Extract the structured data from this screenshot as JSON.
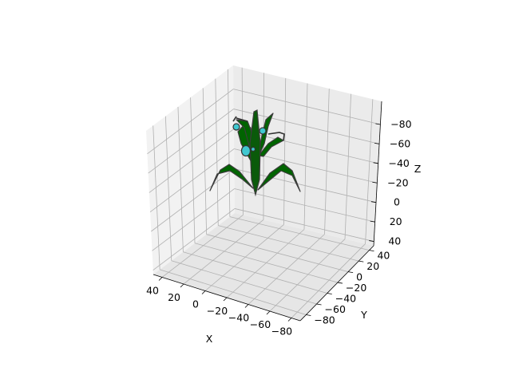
{
  "chart_data": {
    "type": "surface3d",
    "title": "",
    "xlabel": "X",
    "ylabel": "Y",
    "zlabel": "Z",
    "x_ticks": [
      "40",
      "20",
      "0",
      "−20",
      "−40",
      "−60",
      "−80"
    ],
    "y_ticks": [
      "−80",
      "−60",
      "−40",
      "−20",
      "0",
      "20",
      "40"
    ],
    "z_ticks": [
      "−80",
      "−60",
      "−40",
      "−20",
      "0",
      "20",
      "40"
    ],
    "xlim": [
      -95,
      45
    ],
    "ylim": [
      -95,
      45
    ],
    "zlim": [
      -100,
      45
    ],
    "z_inverted": true,
    "grid": true,
    "colors": {
      "leaf": "#006400",
      "edge": "#3c3c3c",
      "fruit": "#40c8d0",
      "pane": "#f2f2f2",
      "grid": "#b0b0b0"
    },
    "objects": [
      {
        "name": "stem",
        "kind": "stem"
      },
      {
        "name": "leaf",
        "kind": "leaf"
      },
      {
        "name": "leaf",
        "kind": "leaf"
      },
      {
        "name": "leaf",
        "kind": "leaf"
      },
      {
        "name": "leaf",
        "kind": "leaf"
      },
      {
        "name": "leaf",
        "kind": "leaf"
      },
      {
        "name": "leaf",
        "kind": "leaf"
      },
      {
        "name": "fruit",
        "kind": "fruit"
      },
      {
        "name": "fruit",
        "kind": "fruit"
      },
      {
        "name": "fruit",
        "kind": "fruit"
      }
    ]
  }
}
